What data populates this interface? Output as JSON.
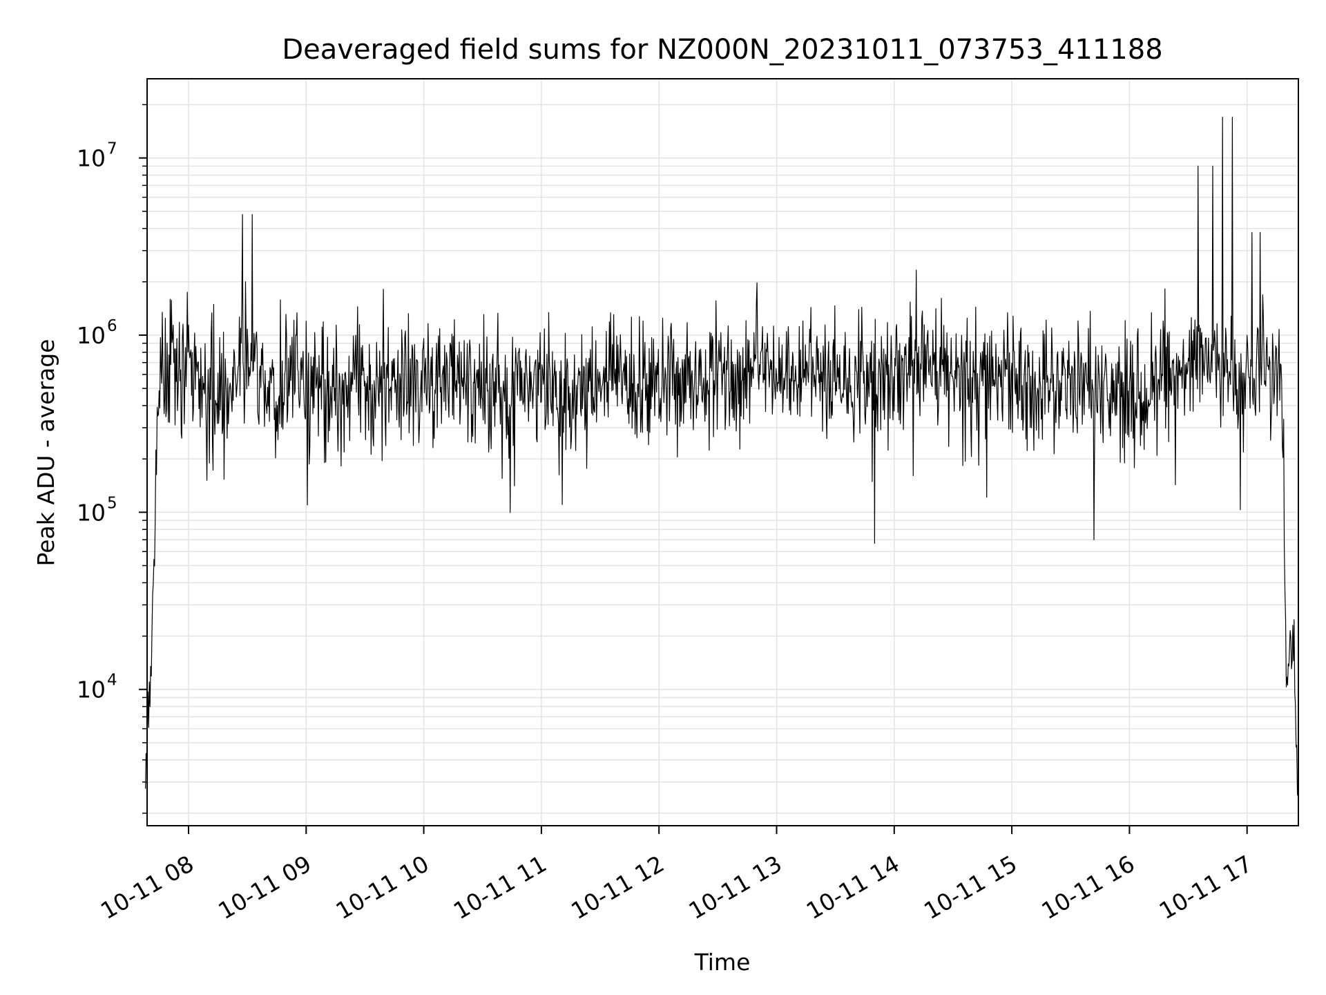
{
  "chart_data": {
    "type": "line",
    "title": "Deaveraged field sums for NZ000N_20231011_073753_411188",
    "xlabel": "Time",
    "ylabel": "Peak ADU - average",
    "y_scale": "log",
    "xlim": [
      "2023-10-11 07:37",
      "2023-10-11 17:26"
    ],
    "ylim": [
      1700,
      28000000
    ],
    "grid": true,
    "line_color": "#000000",
    "x_ticks": [
      "10-11 08",
      "10-11 09",
      "10-11 10",
      "10-11 11",
      "10-11 12",
      "10-11 13",
      "10-11 14",
      "10-11 15",
      "10-11 16",
      "10-11 17"
    ],
    "y_ticks": [
      {
        "base": "10",
        "exp": "4",
        "value": 10000
      },
      {
        "base": "10",
        "exp": "5",
        "value": 100000
      },
      {
        "base": "10",
        "exp": "6",
        "value": 1000000
      },
      {
        "base": "10",
        "exp": "7",
        "value": 10000000
      }
    ],
    "series": [
      {
        "x": [
          "07:38",
          "07:41",
          "07:43",
          "07:46",
          "07:50",
          "07:55",
          "08:00",
          "08:05",
          "08:10",
          "08:15",
          "08:20",
          "08:25",
          "08:30",
          "08:35",
          "08:40",
          "08:45",
          "08:50",
          "09:00",
          "09:10",
          "09:20",
          "09:30",
          "09:40",
          "09:50",
          "10:00",
          "10:10",
          "10:20",
          "10:30",
          "10:40",
          "10:50",
          "11:00",
          "11:10",
          "11:20",
          "11:30",
          "11:40",
          "11:50",
          "12:00",
          "12:10",
          "12:20",
          "12:30",
          "12:40",
          "12:50",
          "13:00",
          "13:10",
          "13:20",
          "13:30",
          "13:40",
          "13:50",
          "14:00",
          "14:10",
          "14:20",
          "14:30",
          "14:40",
          "14:50",
          "15:00",
          "15:10",
          "15:20",
          "15:30",
          "15:40",
          "15:50",
          "16:00",
          "16:10",
          "16:20",
          "16:30",
          "16:40",
          "16:45",
          "16:50",
          "16:55",
          "17:00",
          "17:05",
          "17:08",
          "17:12",
          "17:15",
          "17:18",
          "17:20",
          "17:22",
          "17:24",
          "17:26"
        ],
        "y": [
          3000,
          15000,
          90000,
          600000,
          1500000,
          700000,
          2200000,
          600000,
          500000,
          700000,
          450000,
          700000,
          4800000,
          600000,
          550000,
          500000,
          700000,
          600000,
          600000,
          500000,
          600000,
          650000,
          800000,
          1000000,
          800000,
          700000,
          600000,
          550000,
          500000,
          600000,
          500000,
          550000,
          650000,
          800000,
          700000,
          800000,
          900000,
          800000,
          1000000,
          700000,
          2500000,
          900000,
          800000,
          900000,
          850000,
          1000000,
          900000,
          800000,
          1200000,
          1300000,
          900000,
          800000,
          700000,
          800000,
          600000,
          700000,
          800000,
          700000,
          900000,
          600000,
          600000,
          800000,
          900000,
          9000000,
          600000,
          17000000,
          500000,
          500000,
          3800000,
          2500000,
          600000,
          700000,
          400000,
          10000,
          20000,
          15000,
          2500
        ]
      }
    ]
  }
}
